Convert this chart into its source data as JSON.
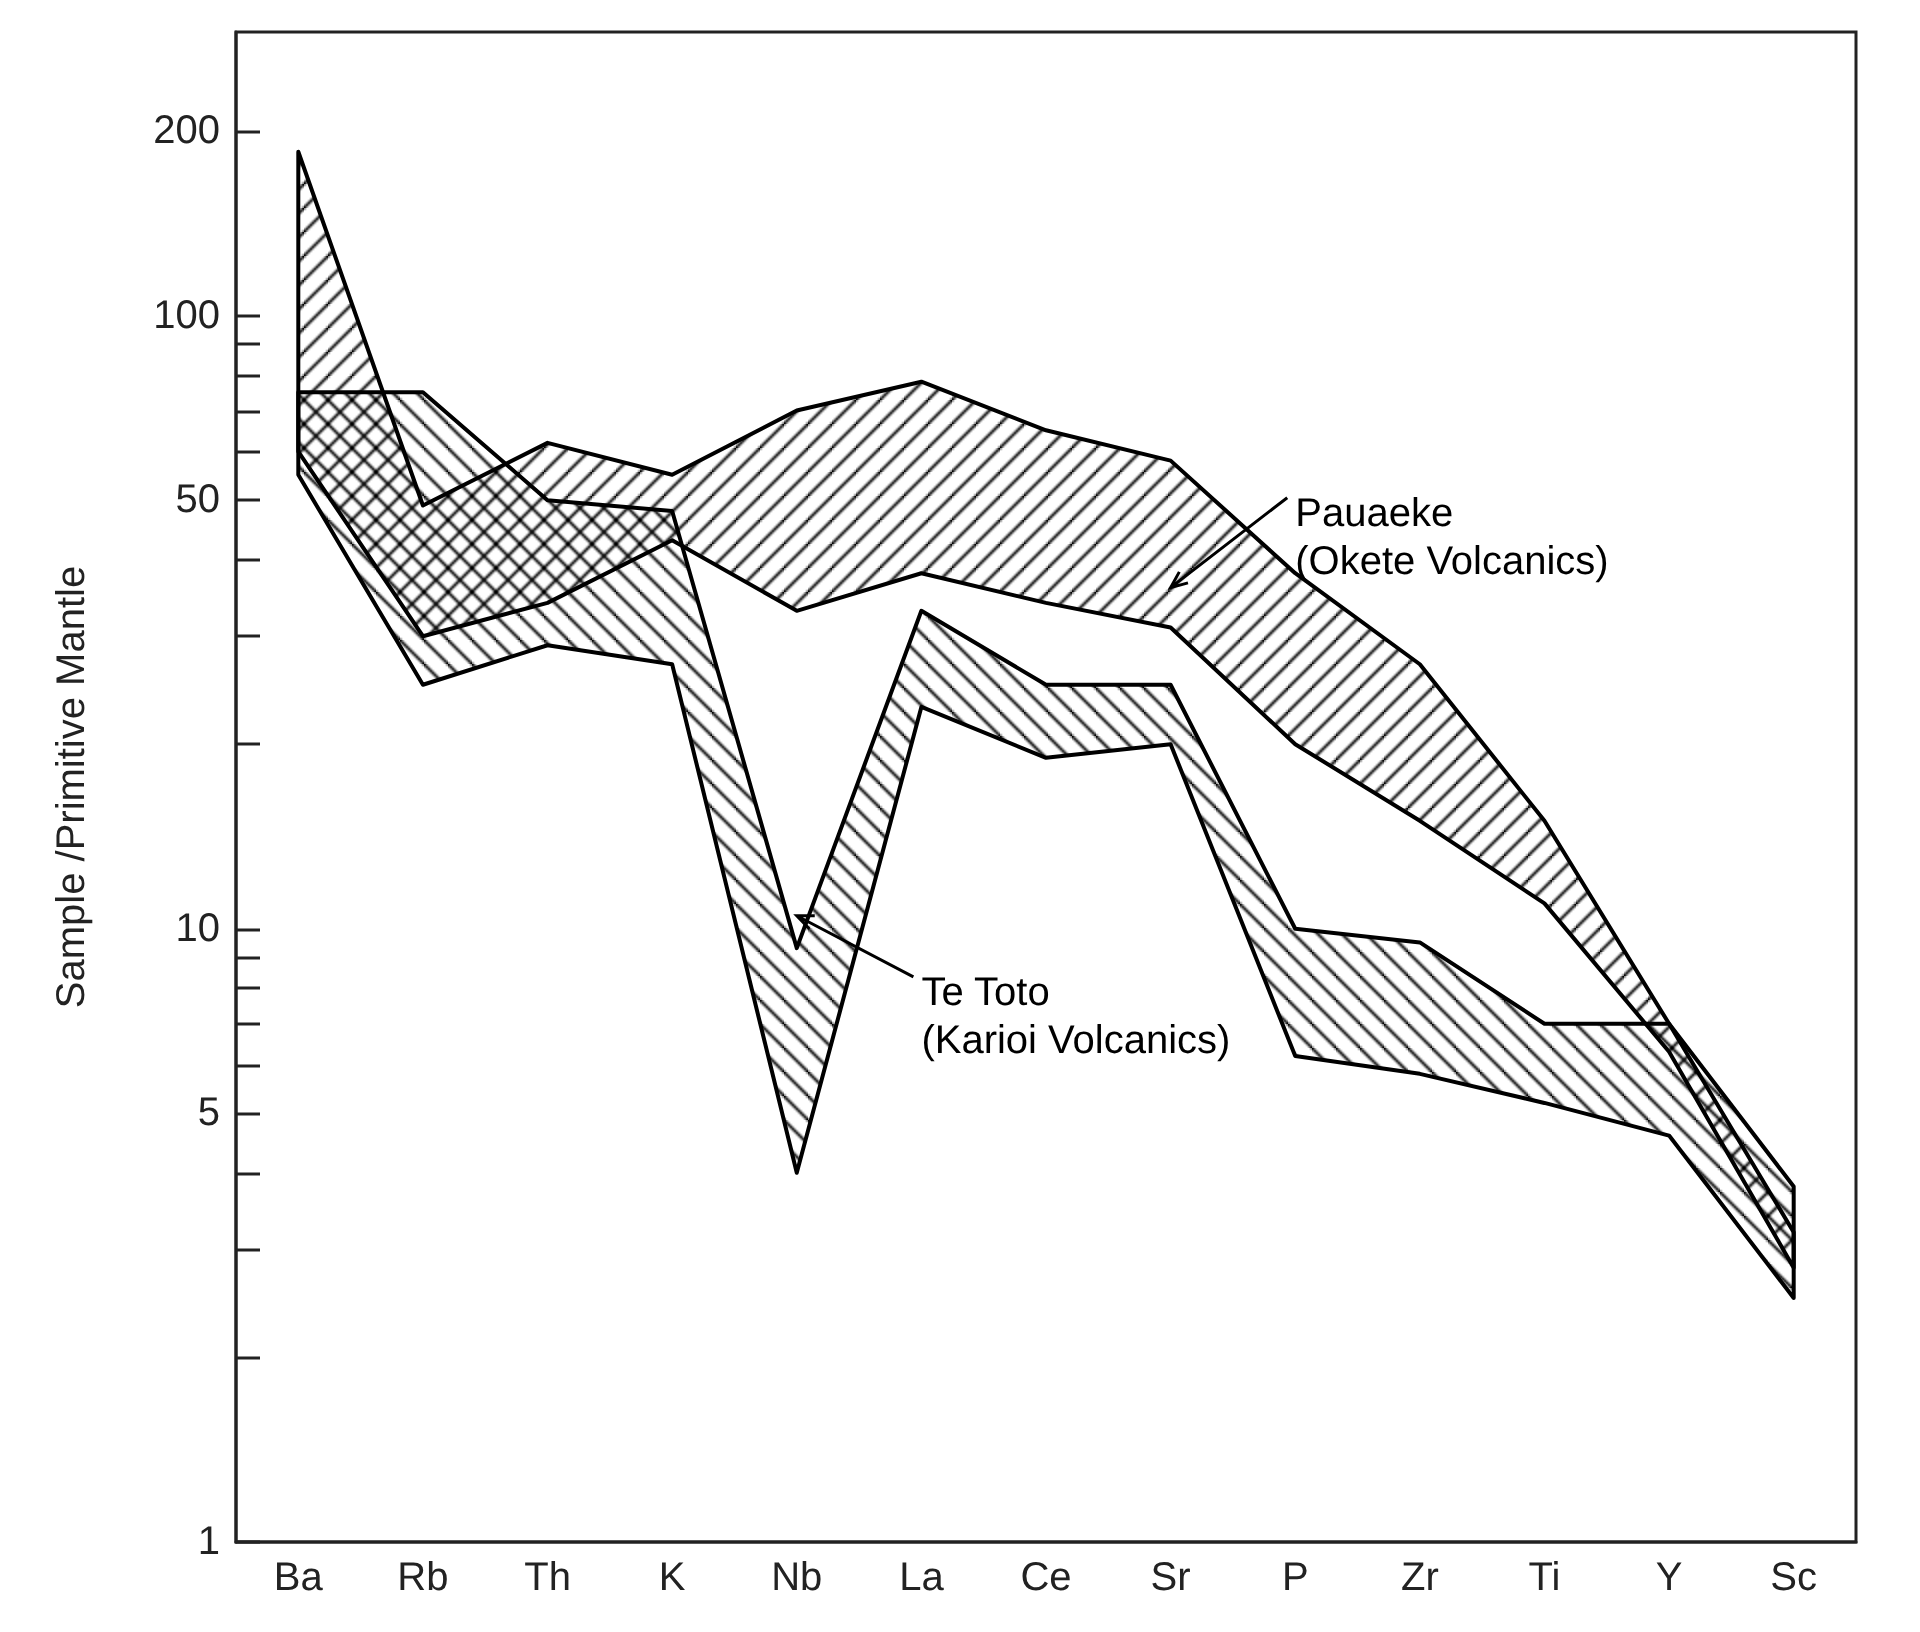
{
  "chart_data": {
    "type": "area",
    "ylabel": "Sample /Primitive Mantle",
    "categories": [
      "Ba",
      "Rb",
      "Th",
      "K",
      "Nb",
      "La",
      "Ce",
      "Sr",
      "P",
      "Zr",
      "Ti",
      "Y",
      "Sc"
    ],
    "log": true,
    "ylim": [
      1,
      290
    ],
    "yticks": [
      1,
      {
        "value": 2,
        "label": null
      },
      {
        "value": 3,
        "label": null
      },
      {
        "value": 4,
        "label": null
      },
      5,
      {
        "value": 6,
        "label": null
      },
      {
        "value": 7,
        "label": null
      },
      {
        "value": 8,
        "label": null
      },
      {
        "value": 9,
        "label": null
      },
      10,
      {
        "value": 20,
        "label": null
      },
      {
        "value": 30,
        "label": null
      },
      {
        "value": 40,
        "label": null
      },
      50,
      {
        "value": 60,
        "label": null
      },
      {
        "value": 70,
        "label": null
      },
      {
        "value": 80,
        "label": null
      },
      {
        "value": 90,
        "label": null
      },
      100,
      200
    ],
    "series": [
      {
        "name": "Pauaeke\n(Okete Volcanics)",
        "color": "#000000",
        "values": [
          null,
          null,
          null,
          null,
          null,
          null,
          null,
          null,
          null,
          null,
          null,
          null,
          null
        ],
        "upper": [
          185,
          49,
          62,
          55,
          70,
          78,
          65,
          58,
          38,
          27,
          15,
          7,
          3.2
        ],
        "lower": [
          60,
          30,
          34,
          43,
          33,
          38,
          34,
          31,
          20,
          15,
          11,
          6.3,
          2.8
        ]
      },
      {
        "name": "Te Toto\n(Karioi Volcanics)",
        "color": "#000000",
        "values": [
          null,
          null,
          null,
          null,
          null,
          null,
          null,
          null,
          null,
          null,
          null,
          null,
          null
        ],
        "upper": [
          75,
          75,
          50,
          48,
          9.3,
          33,
          25,
          25,
          10,
          9.5,
          7,
          7,
          3.8
        ],
        "lower": [
          55,
          25,
          29,
          27,
          4,
          23,
          19,
          20,
          6.2,
          5.8,
          5.2,
          4.6,
          2.5
        ]
      }
    ]
  }
}
